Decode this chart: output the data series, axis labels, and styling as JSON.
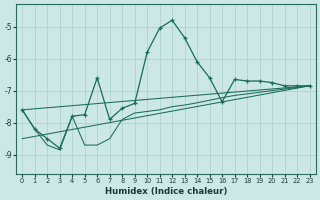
{
  "xlabel": "Humidex (Indice chaleur)",
  "bg_color": "#cce8e4",
  "line_color": "#1a6b5a",
  "grid_color": "#aacfcb",
  "xlim": [
    -0.5,
    23.5
  ],
  "ylim": [
    -9.6,
    -4.3
  ],
  "yticks": [
    -9,
    -8,
    -7,
    -6,
    -5
  ],
  "xticks": [
    0,
    1,
    2,
    3,
    4,
    5,
    6,
    7,
    8,
    9,
    10,
    11,
    12,
    13,
    14,
    15,
    16,
    17,
    18,
    19,
    20,
    21,
    22,
    23
  ],
  "series_main_x": [
    0,
    1,
    2,
    3,
    4,
    5,
    6,
    7,
    8,
    9,
    10,
    11,
    12,
    13,
    14,
    15,
    16,
    17,
    18,
    19,
    20,
    21,
    22,
    23
  ],
  "series_main_y": [
    -7.6,
    -8.2,
    -8.5,
    -8.8,
    -7.8,
    -7.75,
    -6.6,
    -7.9,
    -7.55,
    -7.4,
    -5.8,
    -5.05,
    -4.8,
    -5.35,
    -6.1,
    -6.6,
    -7.35,
    -6.65,
    -6.7,
    -6.7,
    -6.75,
    -6.85,
    -6.85,
    -6.85
  ],
  "series_avg_x": [
    0,
    1,
    2,
    3,
    4,
    5,
    6,
    7,
    8,
    9,
    10,
    11,
    12,
    13,
    14,
    15,
    16,
    17,
    18,
    19,
    20,
    21,
    22,
    23
  ],
  "series_avg_y": [
    -7.6,
    -8.2,
    -8.7,
    -8.85,
    -7.8,
    -8.7,
    -8.7,
    -8.5,
    -7.9,
    -7.7,
    -7.65,
    -7.6,
    -7.5,
    -7.45,
    -7.38,
    -7.3,
    -7.22,
    -7.15,
    -7.1,
    -7.05,
    -7.0,
    -6.95,
    -6.9,
    -6.85
  ],
  "line1_x": [
    0,
    23
  ],
  "line1_y": [
    -7.6,
    -6.85
  ],
  "line2_x": [
    0,
    23
  ],
  "line2_y": [
    -8.5,
    -6.85
  ]
}
